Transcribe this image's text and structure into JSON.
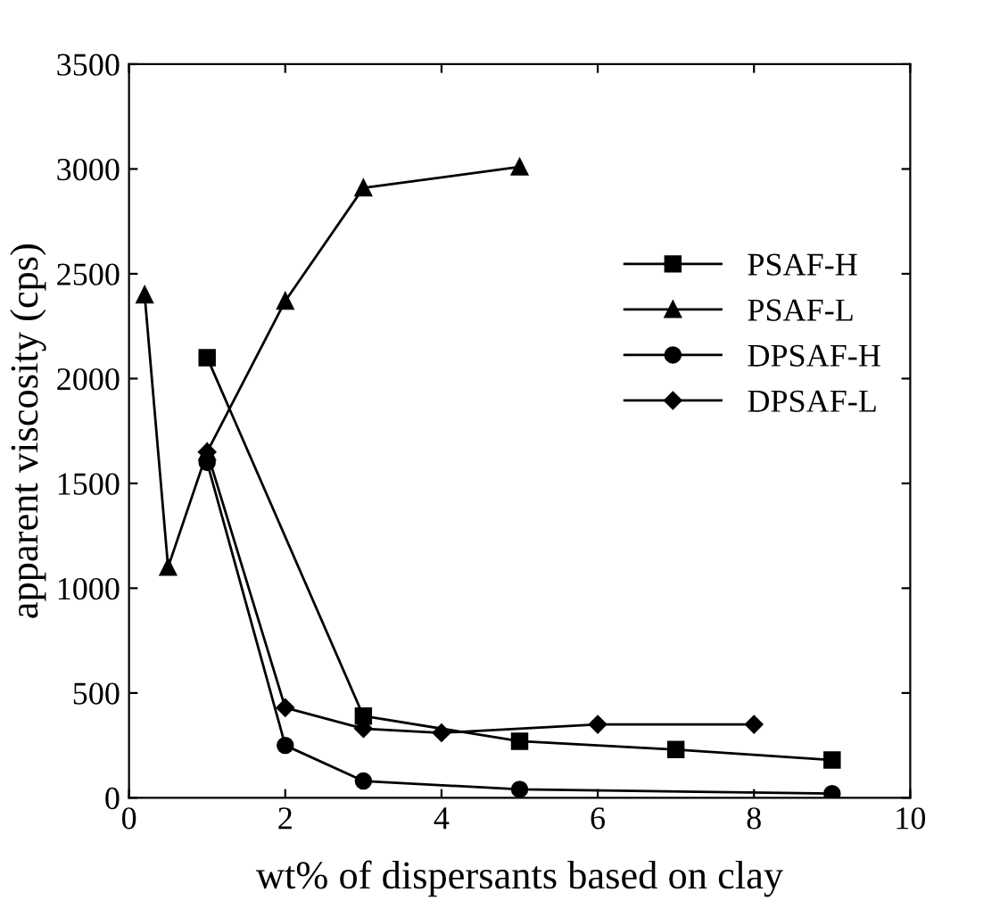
{
  "chart_data": {
    "type": "line",
    "xlabel": "wt% of dispersants based on clay",
    "ylabel": "apparent viscosity (cps)",
    "xlim": [
      0,
      10
    ],
    "ylim": [
      0,
      3500
    ],
    "xticks": [
      0,
      2,
      4,
      6,
      8,
      10
    ],
    "yticks": [
      0,
      500,
      1000,
      1500,
      2000,
      2500,
      3000,
      3500
    ],
    "legend": "right",
    "grid": false,
    "line_style": "solid",
    "series": [
      {
        "name": "PSAF-H",
        "color": "#000000",
        "marker": "square",
        "x": [
          1,
          3,
          5,
          7,
          9
        ],
        "values": [
          2100,
          390,
          270,
          230,
          180
        ]
      },
      {
        "name": "PSAF-L",
        "color": "#000000",
        "marker": "triangle",
        "x": [
          0.2,
          0.5,
          1,
          2,
          3,
          5
        ],
        "values": [
          2400,
          1100,
          1650,
          2370,
          2910,
          3010
        ]
      },
      {
        "name": "DPSAF-H",
        "color": "#000000",
        "marker": "circle",
        "x": [
          1,
          2,
          3,
          5,
          9
        ],
        "values": [
          1600,
          250,
          80,
          40,
          20
        ]
      },
      {
        "name": "DPSAF-L",
        "color": "#000000",
        "marker": "diamond",
        "x": [
          1,
          2,
          3,
          4,
          6,
          8
        ],
        "values": [
          1650,
          430,
          330,
          310,
          350,
          350
        ]
      }
    ]
  }
}
